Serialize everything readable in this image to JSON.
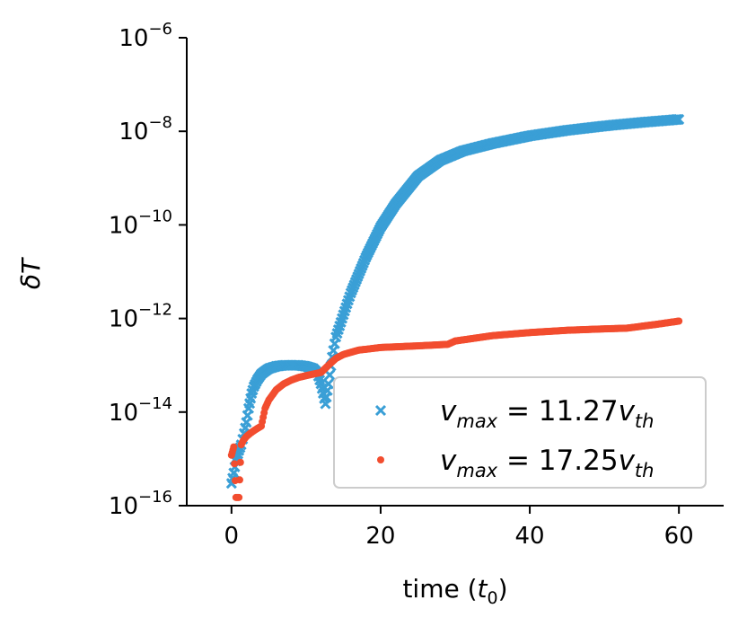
{
  "chart_data": {
    "type": "scatter",
    "title": "",
    "xlabel": "time (t0)",
    "ylabel": "δT",
    "xscale": "linear",
    "yscale": "log",
    "xlim": [
      -6,
      66
    ],
    "ylim": [
      1e-16,
      1e-06
    ],
    "xticks": [
      0,
      20,
      40,
      60
    ],
    "xtick_labels": [
      "0",
      "20",
      "40",
      "60"
    ],
    "yticks": [
      1e-16,
      1e-14,
      1e-12,
      1e-10,
      1e-08,
      1e-06
    ],
    "ytick_labels": [
      {
        "base": "10",
        "exp": "−16"
      },
      {
        "base": "10",
        "exp": "−14"
      },
      {
        "base": "10",
        "exp": "−12"
      },
      {
        "base": "10",
        "exp": "−10"
      },
      {
        "base": "10",
        "exp": "−8"
      },
      {
        "base": "10",
        "exp": "−6"
      }
    ],
    "grid": false,
    "legend_position": "lower-right",
    "series": [
      {
        "name": "v_max = 11.27 v_th",
        "legend": {
          "v": "v",
          "sub": "max",
          "eq": " = 11.27",
          "v2": "v",
          "sub2": "th"
        },
        "marker": "x",
        "color": "#3a9fd6",
        "x": [
          0.0,
          0.3,
          0.6,
          1.0,
          1.3,
          1.7,
          2.0,
          2.3,
          2.7,
          3.0,
          3.5,
          4.0,
          4.5,
          5.0,
          6.0,
          7.0,
          8.0,
          9.0,
          10.0,
          11.0,
          11.5,
          12.0,
          12.3,
          12.6,
          13.0,
          13.5,
          14.0,
          15.0,
          16.0,
          18.0,
          20.0,
          22.0,
          25.0,
          28.0,
          31.0,
          35.0,
          40.0,
          45.0,
          50.0,
          55.0,
          60.0
        ],
        "y": [
          3e-16,
          5e-16,
          9e-16,
          1.5e-15,
          2e-15,
          3.5e-15,
          6e-15,
          1.2e-14,
          2.5e-14,
          3.5e-14,
          5e-14,
          6.5e-14,
          7.5e-14,
          8.5e-14,
          9.5e-14,
          1e-13,
          1e-13,
          1e-13,
          9.5e-14,
          8.5e-14,
          7e-14,
          4e-14,
          2.5e-14,
          1.5e-14,
          4e-14,
          1.5e-13,
          4e-13,
          1.2e-12,
          3.5e-12,
          2e-11,
          9e-11,
          2.8e-10,
          1.1e-09,
          2.4e-09,
          3.8e-09,
          5.5e-09,
          8e-09,
          1.05e-08,
          1.3e-08,
          1.55e-08,
          1.8e-08
        ]
      },
      {
        "name": "v_max = 17.25 v_th",
        "legend": {
          "v": "v",
          "sub": "max",
          "eq": " = 17.25",
          "v2": "v",
          "sub2": "th"
        },
        "marker": "o",
        "color": "#f24d2f",
        "x": [
          0.0,
          0.3,
          0.6,
          1.0,
          1.3,
          1.6,
          2.0,
          2.5,
          3.0,
          3.5,
          4.0,
          4.5,
          5.0,
          6.0,
          7.0,
          8.0,
          9.0,
          10.0,
          11.0,
          12.0,
          13.0,
          14.0,
          15.0,
          17.0,
          20.0,
          25.0,
          29.0,
          30.0,
          35.0,
          40.0,
          45.0,
          50.0,
          53.0,
          54.0,
          57.0,
          60.0
        ],
        "y": [
          1.2e-15,
          1.8e-15,
          1.5e-16,
          1.5e-16,
          2e-15,
          2.5e-15,
          3e-15,
          3.5e-15,
          4e-15,
          4.5e-15,
          5e-15,
          1.2e-14,
          1.8e-14,
          3e-14,
          4e-14,
          4.8e-14,
          5.5e-14,
          6e-14,
          6.5e-14,
          7e-14,
          1e-13,
          1.4e-13,
          1.7e-13,
          2.1e-13,
          2.4e-13,
          2.6e-13,
          2.8e-13,
          3.3e-13,
          4.3e-13,
          5e-13,
          5.6e-13,
          6e-13,
          6.2e-13,
          6.5e-13,
          7.5e-13,
          8.8e-13
        ]
      }
    ]
  }
}
